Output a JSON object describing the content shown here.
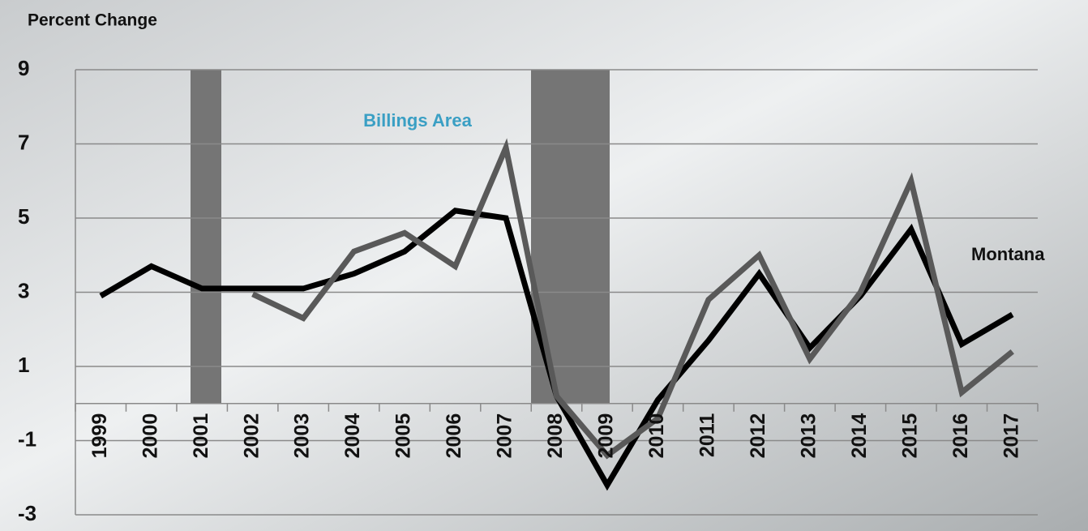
{
  "chart_data": {
    "type": "line",
    "y_label": "Percent Change",
    "categories": [
      "1999",
      "2000",
      "2001",
      "2002",
      "2003",
      "2004",
      "2005",
      "2006",
      "2007",
      "2008",
      "2009",
      "2010",
      "2011",
      "2012",
      "2013",
      "2014",
      "2015",
      "2016",
      "2017"
    ],
    "series": [
      {
        "name": "Montana",
        "color": "#000000",
        "values": [
          2.9,
          3.7,
          3.1,
          3.1,
          3.1,
          3.5,
          4.1,
          5.2,
          5.0,
          0.2,
          -2.2,
          0.1,
          1.7,
          3.5,
          1.5,
          2.9,
          4.7,
          1.6,
          2.4
        ]
      },
      {
        "name": "Billings Area",
        "color": "#595959",
        "values": [
          null,
          null,
          null,
          2.95,
          2.3,
          4.1,
          4.6,
          3.7,
          6.9,
          0.2,
          -1.4,
          -0.4,
          2.8,
          4.0,
          1.2,
          3.0,
          6.0,
          0.3,
          1.4
        ]
      }
    ],
    "ylim": [
      -3,
      9
    ],
    "yticks": [
      -3,
      -1,
      1,
      3,
      5,
      7,
      9
    ],
    "grid": true
  }
}
